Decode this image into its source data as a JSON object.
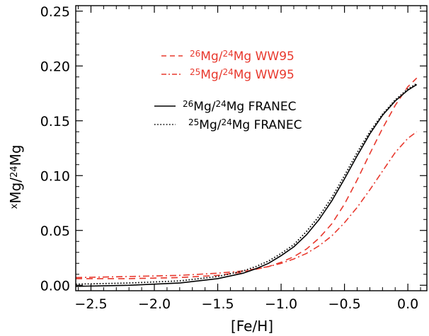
{
  "chart_data": {
    "type": "line",
    "xlabel": "[Fe/H]",
    "ylabel_parts": {
      "sup1": "x",
      "text1": "Mg/",
      "sup2": "24",
      "text2": "Mg"
    },
    "xlim": [
      -2.62,
      0.15
    ],
    "ylim": [
      -0.005,
      0.255
    ],
    "x_ticks": [
      -2.5,
      -2.0,
      -1.5,
      -1.0,
      -0.5,
      0.0
    ],
    "x_tick_labels": [
      "−2.5",
      "−2.0",
      "−1.5",
      "−1.0",
      "−0.5",
      "0.0"
    ],
    "y_ticks": [
      0.0,
      0.05,
      0.1,
      0.15,
      0.2,
      0.25
    ],
    "y_tick_labels": [
      "0.00",
      "0.05",
      "0.10",
      "0.15",
      "0.20",
      "0.25"
    ],
    "legend_position": "top-center",
    "series": [
      {
        "name": "26Mg/24Mg WW95",
        "legend": {
          "sup1": "26",
          "mid": "Mg/",
          "sup2": "24",
          "tail": "Mg WW95"
        },
        "color": "#e8382d",
        "dash": "dashed",
        "x": [
          -2.62,
          -2.2,
          -1.8,
          -1.5,
          -1.3,
          -1.1,
          -1.0,
          -0.9,
          -0.8,
          -0.7,
          -0.6,
          -0.5,
          -0.4,
          -0.3,
          -0.2,
          -0.1,
          0.0,
          0.07
        ],
        "y": [
          0.006,
          0.006,
          0.007,
          0.009,
          0.012,
          0.017,
          0.021,
          0.026,
          0.033,
          0.043,
          0.056,
          0.074,
          0.096,
          0.12,
          0.143,
          0.164,
          0.181,
          0.189
        ]
      },
      {
        "name": "25Mg/24Mg WW95",
        "legend": {
          "sup1": "25",
          "mid": "Mg/",
          "sup2": "24",
          "tail": "Mg WW95"
        },
        "color": "#e8382d",
        "dash": "dashdot",
        "x": [
          -2.62,
          -2.2,
          -1.8,
          -1.5,
          -1.3,
          -1.1,
          -1.0,
          -0.9,
          -0.8,
          -0.7,
          -0.6,
          -0.5,
          -0.4,
          -0.3,
          -0.2,
          -0.1,
          0.0,
          0.07
        ],
        "y": [
          0.007,
          0.008,
          0.009,
          0.011,
          0.013,
          0.017,
          0.02,
          0.024,
          0.029,
          0.036,
          0.045,
          0.057,
          0.071,
          0.087,
          0.104,
          0.121,
          0.134,
          0.14
        ]
      },
      {
        "name": "26Mg/24Mg FRANEC",
        "legend": {
          "sup1": "26",
          "mid": "Mg/",
          "sup2": "24",
          "tail": "Mg FRANEC"
        },
        "color": "#000000",
        "dash": "solid",
        "x": [
          -2.62,
          -2.2,
          -1.8,
          -1.5,
          -1.3,
          -1.2,
          -1.1,
          -1.0,
          -0.9,
          -0.8,
          -0.7,
          -0.6,
          -0.5,
          -0.4,
          -0.3,
          -0.2,
          -0.1,
          0.0,
          0.07
        ],
        "y": [
          -0.001,
          0.0,
          0.002,
          0.006,
          0.011,
          0.015,
          0.02,
          0.027,
          0.035,
          0.046,
          0.06,
          0.077,
          0.097,
          0.118,
          0.138,
          0.155,
          0.168,
          0.178,
          0.183
        ]
      },
      {
        "name": "25Mg/24Mg FRANEC",
        "legend": {
          "sup1": "25",
          "mid": "Mg/",
          "sup2": "24",
          "tail": "Mg FRANEC"
        },
        "color": "#000000",
        "dash": "dotted",
        "x": [
          -2.62,
          -2.2,
          -1.8,
          -1.5,
          -1.3,
          -1.2,
          -1.1,
          -1.0,
          -0.9,
          -0.8,
          -0.7,
          -0.6,
          -0.5,
          -0.4,
          -0.3,
          -0.2,
          -0.1,
          0.0,
          0.07
        ],
        "y": [
          0.001,
          0.002,
          0.004,
          0.008,
          0.013,
          0.017,
          0.022,
          0.029,
          0.037,
          0.049,
          0.063,
          0.08,
          0.1,
          0.121,
          0.14,
          0.156,
          0.169,
          0.179,
          0.184
        ]
      }
    ]
  }
}
